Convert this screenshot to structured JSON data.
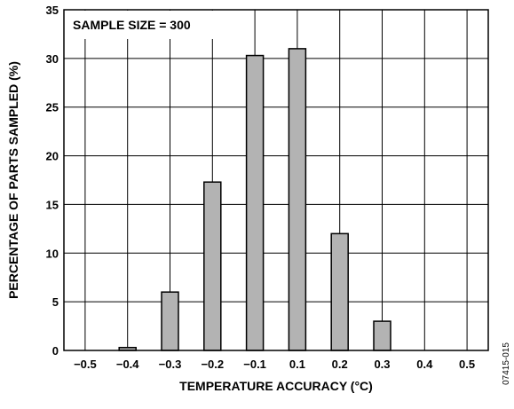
{
  "chart_data": {
    "type": "bar",
    "annotation": "SAMPLE SIZE = 300",
    "xlabel": "TEMPERATURE ACCURACY (°C)",
    "ylabel": "PERCENTAGE OF PARTS SAMPLED (%)",
    "figure_id": "07415-015",
    "ylim": [
      0,
      35
    ],
    "yticks": [
      0,
      5,
      10,
      15,
      20,
      25,
      30,
      35
    ],
    "grid": true,
    "bar_color": "#b3b3b3",
    "categories": [
      "−0.5",
      "−0.4",
      "−0.3",
      "−0.2",
      "−0.1",
      "0.1",
      "0.2",
      "0.3",
      "0.4",
      "0.5"
    ],
    "values": [
      0,
      0.3,
      6,
      17.3,
      30.3,
      31,
      12,
      3,
      0,
      0
    ]
  }
}
